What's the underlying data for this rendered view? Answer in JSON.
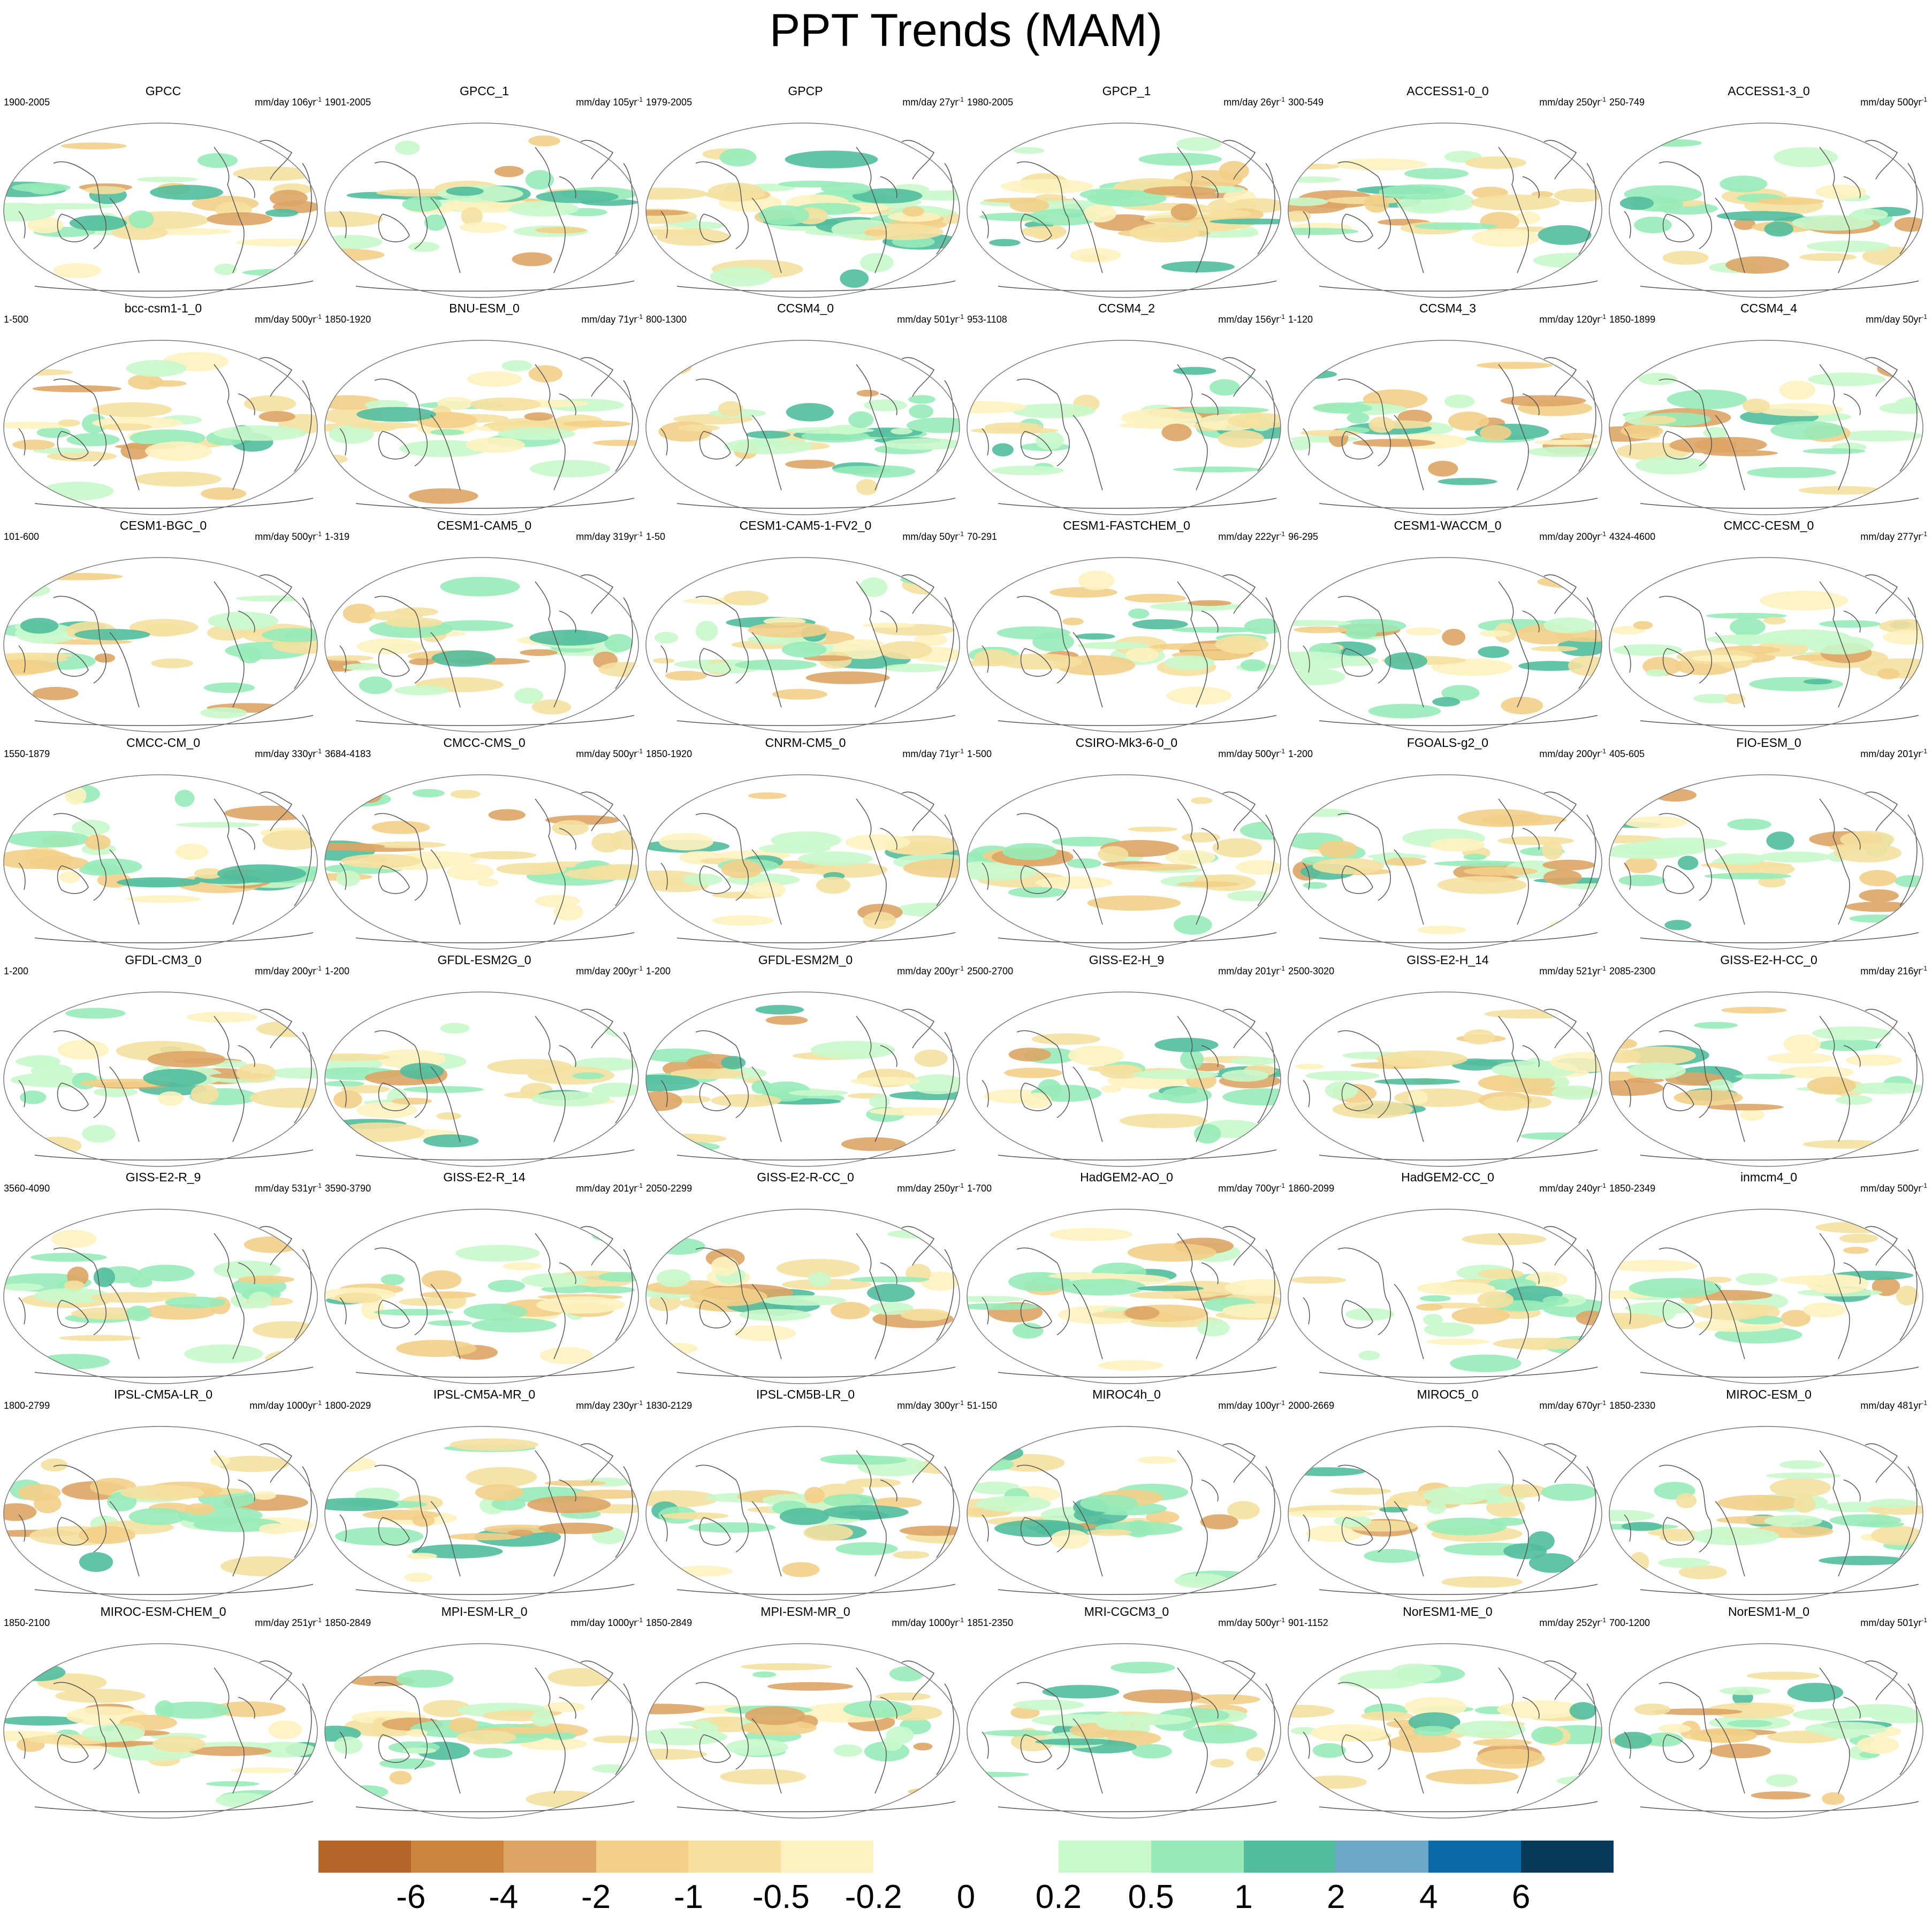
{
  "title": "PPT Trends (MAM)",
  "panels": [
    {
      "name": "GPCC",
      "range": "1900-2005",
      "unit_value": "mm/day 106yr"
    },
    {
      "name": "GPCC_1",
      "range": "1901-2005",
      "unit_value": "mm/day 105yr"
    },
    {
      "name": "GPCP",
      "range": "1979-2005",
      "unit_value": "mm/day 27yr"
    },
    {
      "name": "GPCP_1",
      "range": "1980-2005",
      "unit_value": "mm/day 26yr"
    },
    {
      "name": "ACCESS1-0_0",
      "range": "300-549",
      "unit_value": "mm/day 250yr"
    },
    {
      "name": "ACCESS1-3_0",
      "range": "250-749",
      "unit_value": "mm/day 500yr"
    },
    {
      "name": "bcc-csm1-1_0",
      "range": "1-500",
      "unit_value": "mm/day 500yr"
    },
    {
      "name": "BNU-ESM_0",
      "range": "1850-1920",
      "unit_value": "mm/day 71yr"
    },
    {
      "name": "CCSM4_0",
      "range": "800-1300",
      "unit_value": "mm/day 501yr"
    },
    {
      "name": "CCSM4_2",
      "range": "953-1108",
      "unit_value": "mm/day 156yr"
    },
    {
      "name": "CCSM4_3",
      "range": "1-120",
      "unit_value": "mm/day 120yr"
    },
    {
      "name": "CCSM4_4",
      "range": "1850-1899",
      "unit_value": "mm/day 50yr"
    },
    {
      "name": "CESM1-BGC_0",
      "range": "101-600",
      "unit_value": "mm/day 500yr"
    },
    {
      "name": "CESM1-CAM5_0",
      "range": "1-319",
      "unit_value": "mm/day 319yr"
    },
    {
      "name": "CESM1-CAM5-1-FV2_0",
      "range": "1-50",
      "unit_value": "mm/day 50yr"
    },
    {
      "name": "CESM1-FASTCHEM_0",
      "range": "70-291",
      "unit_value": "mm/day 222yr"
    },
    {
      "name": "CESM1-WACCM_0",
      "range": "96-295",
      "unit_value": "mm/day 200yr"
    },
    {
      "name": "CMCC-CESM_0",
      "range": "4324-4600",
      "unit_value": "mm/day 277yr"
    },
    {
      "name": "CMCC-CM_0",
      "range": "1550-1879",
      "unit_value": "mm/day 330yr"
    },
    {
      "name": "CMCC-CMS_0",
      "range": "3684-4183",
      "unit_value": "mm/day 500yr"
    },
    {
      "name": "CNRM-CM5_0",
      "range": "1850-1920",
      "unit_value": "mm/day 71yr"
    },
    {
      "name": "CSIRO-Mk3-6-0_0",
      "range": "1-500",
      "unit_value": "mm/day 500yr"
    },
    {
      "name": "FGOALS-g2_0",
      "range": "1-200",
      "unit_value": "mm/day 200yr"
    },
    {
      "name": "FIO-ESM_0",
      "range": "405-605",
      "unit_value": "mm/day 201yr"
    },
    {
      "name": "GFDL-CM3_0",
      "range": "1-200",
      "unit_value": "mm/day 200yr"
    },
    {
      "name": "GFDL-ESM2G_0",
      "range": "1-200",
      "unit_value": "mm/day 200yr"
    },
    {
      "name": "GFDL-ESM2M_0",
      "range": "1-200",
      "unit_value": "mm/day 200yr"
    },
    {
      "name": "GISS-E2-H_9",
      "range": "2500-2700",
      "unit_value": "mm/day 201yr"
    },
    {
      "name": "GISS-E2-H_14",
      "range": "2500-3020",
      "unit_value": "mm/day 521yr"
    },
    {
      "name": "GISS-E2-H-CC_0",
      "range": "2085-2300",
      "unit_value": "mm/day 216yr"
    },
    {
      "name": "GISS-E2-R_9",
      "range": "3560-4090",
      "unit_value": "mm/day 531yr"
    },
    {
      "name": "GISS-E2-R_14",
      "range": "3590-3790",
      "unit_value": "mm/day 201yr"
    },
    {
      "name": "GISS-E2-R-CC_0",
      "range": "2050-2299",
      "unit_value": "mm/day 250yr"
    },
    {
      "name": "HadGEM2-AO_0",
      "range": "1-700",
      "unit_value": "mm/day 700yr"
    },
    {
      "name": "HadGEM2-CC_0",
      "range": "1860-2099",
      "unit_value": "mm/day 240yr"
    },
    {
      "name": "inmcm4_0",
      "range": "1850-2349",
      "unit_value": "mm/day 500yr"
    },
    {
      "name": "IPSL-CM5A-LR_0",
      "range": "1800-2799",
      "unit_value": "mm/day 1000yr"
    },
    {
      "name": "IPSL-CM5A-MR_0",
      "range": "1800-2029",
      "unit_value": "mm/day 230yr"
    },
    {
      "name": "IPSL-CM5B-LR_0",
      "range": "1830-2129",
      "unit_value": "mm/day 300yr"
    },
    {
      "name": "MIROC4h_0",
      "range": "51-150",
      "unit_value": "mm/day 100yr"
    },
    {
      "name": "MIROC5_0",
      "range": "2000-2669",
      "unit_value": "mm/day 670yr"
    },
    {
      "name": "MIROC-ESM_0",
      "range": "1850-2330",
      "unit_value": "mm/day 481yr"
    },
    {
      "name": "MIROC-ESM-CHEM_0",
      "range": "1850-2100",
      "unit_value": "mm/day 251yr"
    },
    {
      "name": "MPI-ESM-LR_0",
      "range": "1850-2849",
      "unit_value": "mm/day 1000yr"
    },
    {
      "name": "MPI-ESM-MR_0",
      "range": "1850-2849",
      "unit_value": "mm/day 1000yr"
    },
    {
      "name": "MRI-CGCM3_0",
      "range": "1851-2350",
      "unit_value": "mm/day 500yr"
    },
    {
      "name": "NorESM1-ME_0",
      "range": "901-1152",
      "unit_value": "mm/day 252yr"
    },
    {
      "name": "NorESM1-M_0",
      "range": "700-1200",
      "unit_value": "mm/day 501yr"
    }
  ],
  "unit_superscript": "-1",
  "colorbar": {
    "colors": [
      "#b5652a",
      "#cc8540",
      "#dda565",
      "#f3cf88",
      "#f5e0a0",
      "#fdf2bf",
      "#ffffff",
      "#ffffff",
      "#c9f8cb",
      "#97ebb8",
      "#52bc9c",
      "#6ea8cb",
      "#0b6aa8",
      "#073a5a"
    ],
    "tick_labels": [
      "-6",
      "-4",
      "-2",
      "-1",
      "-0.5",
      "-0.2",
      "0",
      "0.2",
      "0.5",
      "1",
      "2",
      "4",
      "6"
    ]
  }
}
